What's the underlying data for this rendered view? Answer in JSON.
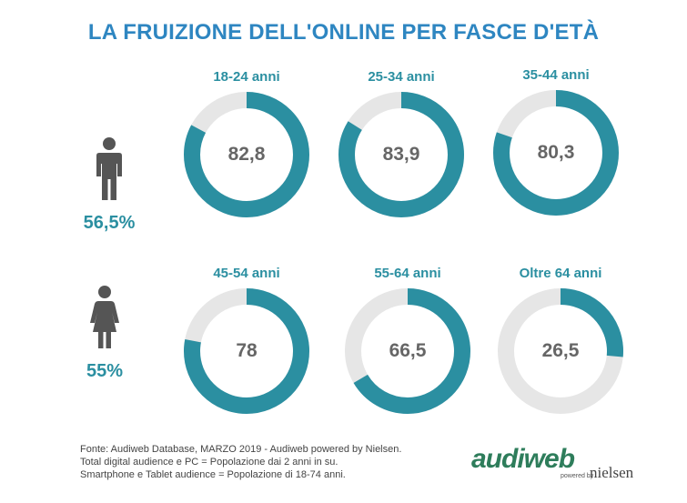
{
  "title": "LA FRUIZIONE DELL'ONLINE PER FASCE D'ETÀ",
  "colors": {
    "accent": "#2b8fa1",
    "track": "#e6e6e6",
    "value_text": "#666666",
    "icon": "#555555",
    "title": "#2e86c1",
    "logo_green": "#2e7d5b"
  },
  "genders": [
    {
      "name": "male",
      "icon": "male-person-icon",
      "percent": "56,5%"
    },
    {
      "name": "female",
      "icon": "female-person-icon",
      "percent": "55%"
    }
  ],
  "chart_data": {
    "type": "pie",
    "variant": "donut",
    "max": 100,
    "items": [
      {
        "label": "18-24 anni",
        "value": 82.8,
        "display": "82,8"
      },
      {
        "label": "25-34 anni",
        "value": 83.9,
        "display": "83,9"
      },
      {
        "label": "35-44 anni",
        "value": 80.3,
        "display": "80,3"
      },
      {
        "label": "45-54 anni",
        "value": 78,
        "display": "78"
      },
      {
        "label": "55-64 anni",
        "value": 66.5,
        "display": "66,5"
      },
      {
        "label": "Oltre 64 anni",
        "value": 26.5,
        "display": "26,5"
      }
    ]
  },
  "footer": {
    "line1": "Fonte: Audiweb Database, MARZO 2019 - Audiweb powered by Nielsen.",
    "line2": "Total digital audience e PC = Popolazione dai 2 anni in su.",
    "line3": "Smartphone e Tablet audience = Popolazione di 18-74 anni."
  },
  "logo": {
    "brand": "audiweb",
    "powered": "powered by",
    "partner": "nielsen"
  }
}
